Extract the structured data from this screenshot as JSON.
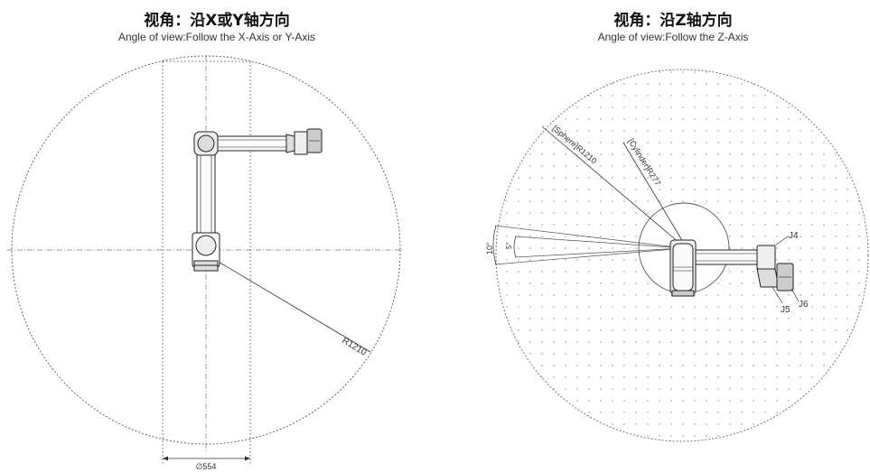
{
  "left_view": {
    "title": "视角：沿X或Y轴方向",
    "subtitle": "Angle of view:Follow the X-Axis or Y-Axis",
    "radius_label": "R1210",
    "width_label": "∅554"
  },
  "right_view": {
    "title": "视角：沿Z轴方向",
    "subtitle": "Angle of view:Follow the Z-Axis",
    "sphere_label": "[Sphere]R1210",
    "cylinder_label": "[Cylinder]R277",
    "angle_10_label": "10°",
    "angle_5_label": "5°",
    "joint_labels": [
      "J4",
      "J5",
      "J6"
    ]
  }
}
